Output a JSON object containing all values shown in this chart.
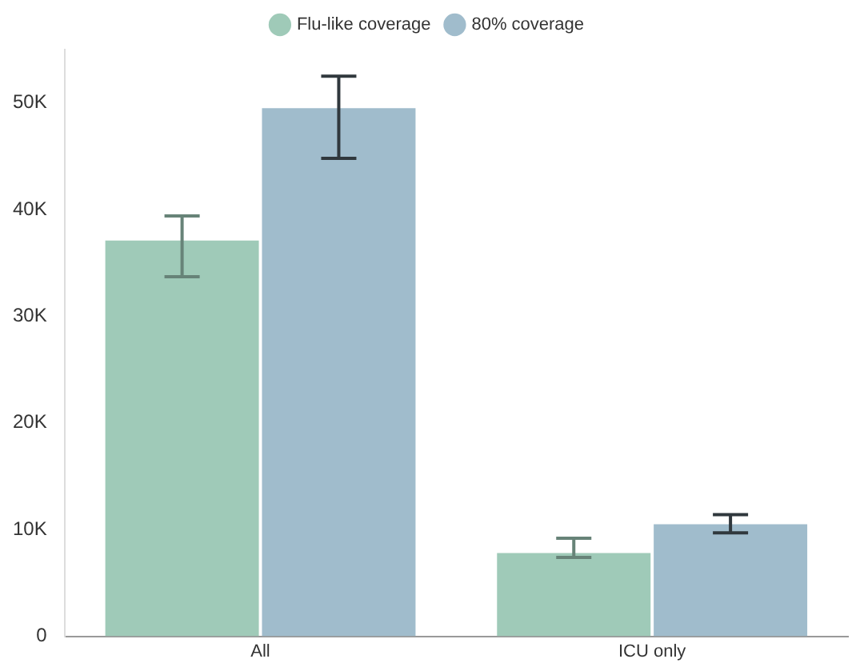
{
  "chart_data": {
    "type": "bar",
    "categories": [
      "All",
      "ICU only"
    ],
    "series": [
      {
        "name": "Flu-like coverage",
        "color": "#9fcab8",
        "values": [
          37100,
          7800
        ],
        "errors": [
          [
            33700,
            39400
          ],
          [
            7400,
            9200
          ]
        ]
      },
      {
        "name": "80% coverage",
        "color": "#a0bccc",
        "values": [
          49500,
          10500
        ],
        "errors": [
          [
            44800,
            52500
          ],
          [
            9700,
            11400
          ]
        ]
      }
    ],
    "ylim": [
      0,
      55000
    ],
    "yticks": [
      {
        "value": 0,
        "label": "0"
      },
      {
        "value": 10000,
        "label": "10K"
      },
      {
        "value": 20000,
        "label": "20K"
      },
      {
        "value": 30000,
        "label": "30K"
      },
      {
        "value": 40000,
        "label": "40K"
      },
      {
        "value": 50000,
        "label": "50K"
      }
    ],
    "grid": false,
    "legend": "top"
  }
}
